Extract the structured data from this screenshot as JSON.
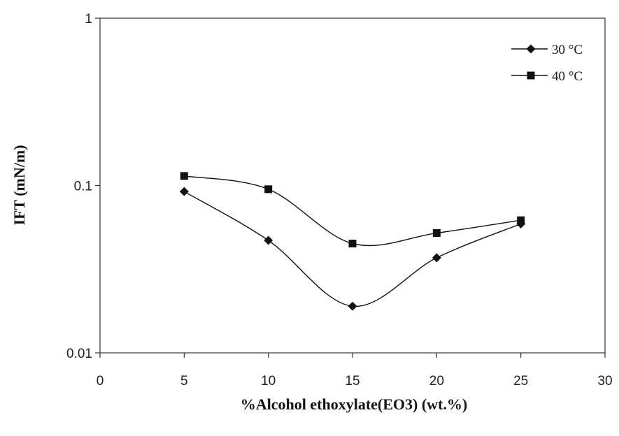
{
  "chart_data": {
    "type": "line",
    "title": "",
    "xlabel": "%Alcohol ethoxylate(EO3) (wt.%)",
    "ylabel": "IFT (mN/m)",
    "xlim": [
      0,
      30
    ],
    "ylim": [
      0.01,
      1
    ],
    "yscale": "log",
    "xticks": [
      "0",
      "5",
      "10",
      "15",
      "20",
      "25",
      "30"
    ],
    "yticks": [
      "0.01",
      "0.1",
      "1"
    ],
    "grid": false,
    "legend_position": "top-right",
    "series": [
      {
        "name": "30 °C",
        "marker": "diamond",
        "color": "#111111",
        "x": [
          5,
          10,
          15,
          20,
          25
        ],
        "y": [
          0.092,
          0.047,
          0.019,
          0.037,
          0.059
        ]
      },
      {
        "name": "40 °C",
        "marker": "square",
        "color": "#111111",
        "x": [
          5,
          10,
          15,
          20,
          25
        ],
        "y": [
          0.114,
          0.095,
          0.045,
          0.052,
          0.062
        ]
      }
    ]
  }
}
